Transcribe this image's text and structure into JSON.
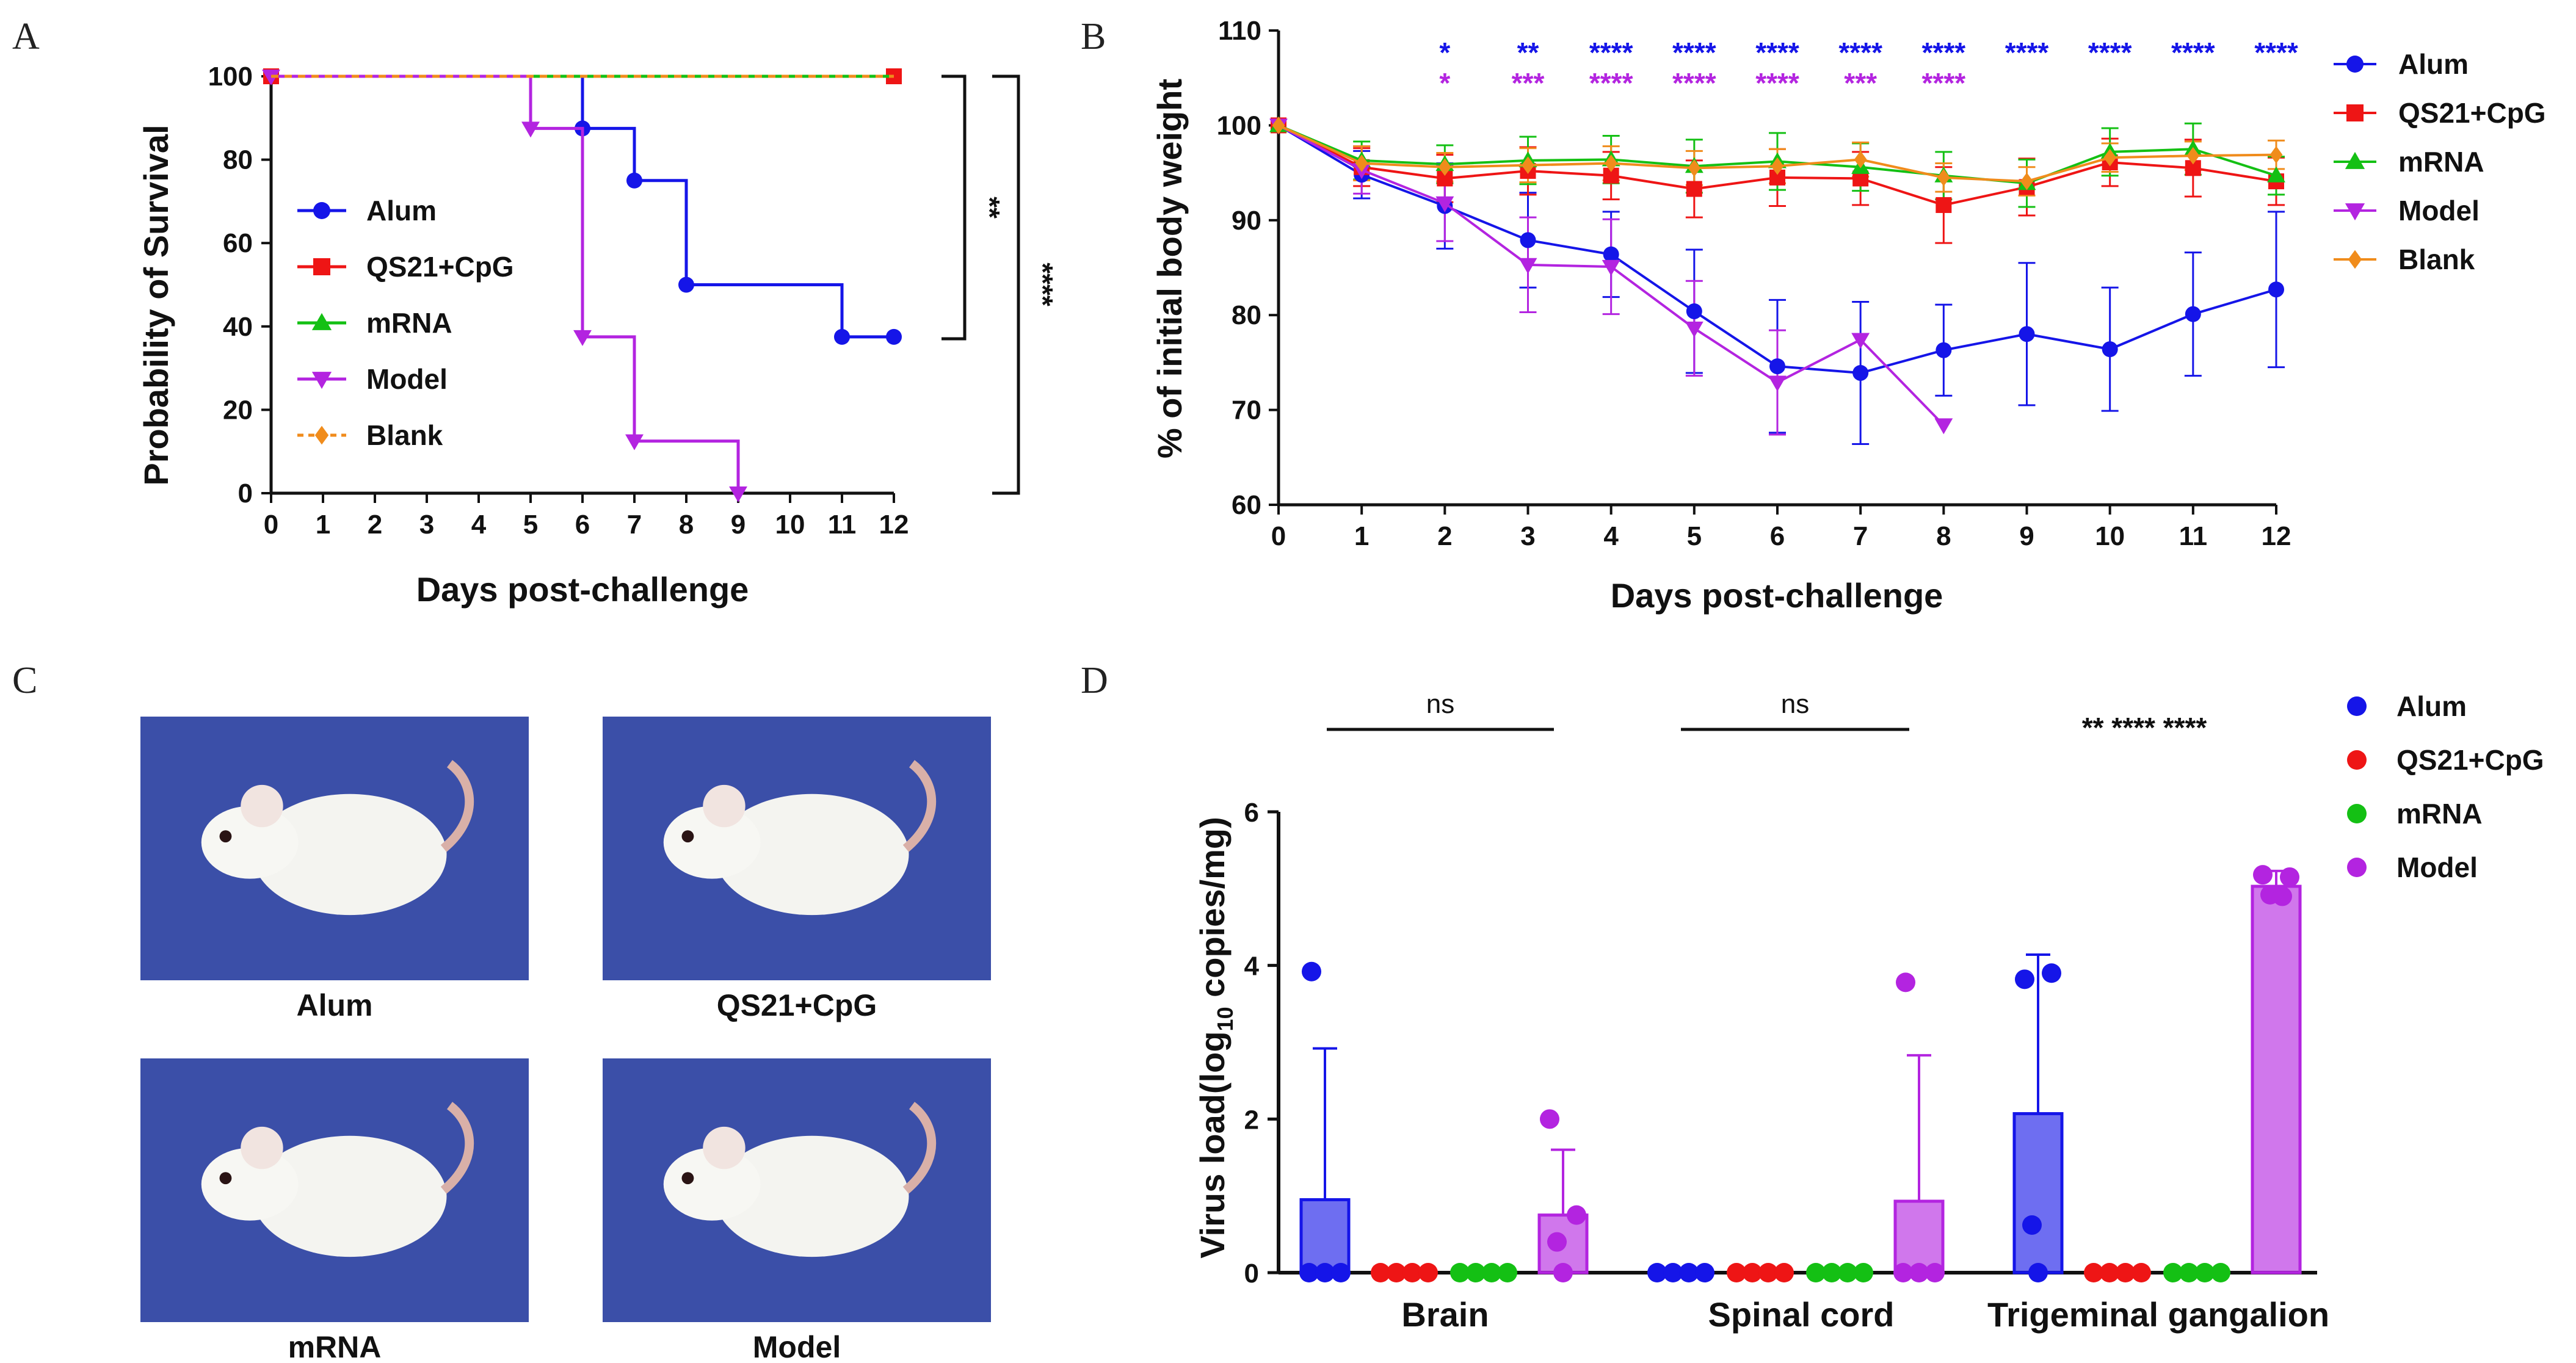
{
  "colors": {
    "alum": "#1515e8",
    "qs21": "#ee1515",
    "mrna": "#14c014",
    "model": "#b324e0",
    "blank": "#f08c1c",
    "photo_bg": "#3b4fa8"
  },
  "panels": {
    "A": {
      "letter": "A"
    },
    "B": {
      "letter": "B"
    },
    "C": {
      "letter": "C",
      "photo_labels": [
        "Alum",
        "QS21+CpG",
        "mRNA",
        "Model"
      ]
    },
    "D": {
      "letter": "D"
    }
  },
  "chart_data": [
    {
      "panel": "A",
      "type": "line",
      "style": "survival-step",
      "xlabel": "Days post-challenge",
      "ylabel": "Probability of Survival",
      "xlim": [
        0,
        12
      ],
      "ylim": [
        0,
        100
      ],
      "xticks": [
        0,
        1,
        2,
        3,
        4,
        5,
        6,
        7,
        8,
        9,
        10,
        11,
        12
      ],
      "yticks": [
        0,
        20,
        40,
        60,
        80,
        100
      ],
      "series": [
        {
          "name": "Alum",
          "key": "alum",
          "marker": "circle",
          "steps": [
            [
              0,
              100
            ],
            [
              6,
              87.5
            ],
            [
              7,
              75
            ],
            [
              8,
              50
            ],
            [
              11,
              37.5
            ],
            [
              12,
              37.5
            ]
          ],
          "points": [
            [
              0,
              100
            ],
            [
              6,
              87.5
            ],
            [
              7,
              75
            ],
            [
              8,
              50
            ],
            [
              11,
              37.5
            ],
            [
              12,
              37.5
            ]
          ]
        },
        {
          "name": "QS21+CpG",
          "key": "qs21",
          "marker": "square",
          "steps": [
            [
              0,
              100
            ],
            [
              12,
              100
            ]
          ],
          "points": [
            [
              0,
              100
            ],
            [
              12,
              100
            ]
          ]
        },
        {
          "name": "mRNA",
          "key": "mrna",
          "marker": "triangle-up",
          "steps": [
            [
              0,
              100
            ],
            [
              12,
              100
            ]
          ],
          "points": []
        },
        {
          "name": "Model",
          "key": "model",
          "marker": "triangle-down",
          "steps": [
            [
              0,
              100
            ],
            [
              5,
              87.5
            ],
            [
              6,
              37.5
            ],
            [
              7,
              12.5
            ],
            [
              9,
              0
            ]
          ],
          "points": [
            [
              0,
              100
            ],
            [
              5,
              87.5
            ],
            [
              6,
              37.5
            ],
            [
              7,
              12.5
            ],
            [
              9,
              0
            ]
          ]
        },
        {
          "name": "Blank",
          "key": "blank",
          "marker": "diamond",
          "dashed": true,
          "steps": [
            [
              0,
              100
            ],
            [
              12,
              100
            ]
          ],
          "points": []
        }
      ],
      "legend": [
        "Alum",
        "QS21+CpG",
        "mRNA",
        "Model",
        "Blank"
      ],
      "annotations": [
        {
          "label": "**"
        },
        {
          "label": "****"
        }
      ]
    },
    {
      "panel": "B",
      "type": "line",
      "xlabel": "Days post-challenge",
      "ylabel": "% of initial body weight",
      "xlim": [
        0,
        12
      ],
      "ylim": [
        60,
        110
      ],
      "xticks": [
        0,
        1,
        2,
        3,
        4,
        5,
        6,
        7,
        8,
        9,
        10,
        11,
        12
      ],
      "yticks": [
        60,
        70,
        80,
        90,
        100,
        110
      ],
      "series": [
        {
          "name": "Alum",
          "key": "alum",
          "marker": "circle",
          "x": [
            0,
            1,
            2,
            3,
            4,
            5,
            6,
            7,
            8,
            9,
            10,
            11,
            12
          ],
          "y": [
            100,
            94.8,
            91.5,
            87.9,
            86.4,
            80.4,
            74.6,
            73.9,
            76.3,
            78,
            76.4,
            80.1,
            82.7
          ],
          "err": [
            0,
            2.5,
            4.5,
            5,
            4.5,
            6.5,
            7,
            7.5,
            4.8,
            7.5,
            6.5,
            6.5,
            8.2
          ]
        },
        {
          "name": "QS21+CpG",
          "key": "qs21",
          "marker": "square",
          "x": [
            0,
            1,
            2,
            3,
            4,
            5,
            6,
            7,
            8,
            9,
            10,
            11,
            12
          ],
          "y": [
            100,
            95.6,
            94.4,
            95.2,
            94.7,
            93.3,
            94.5,
            94.4,
            91.6,
            93.5,
            96.1,
            95.5,
            94.1
          ],
          "err": [
            0,
            2,
            2.5,
            2.5,
            2.5,
            3,
            3,
            2.8,
            4,
            3,
            2.5,
            3,
            2.5
          ]
        },
        {
          "name": "mRNA",
          "key": "mrna",
          "marker": "triangle-up",
          "x": [
            0,
            1,
            2,
            3,
            4,
            5,
            6,
            7,
            8,
            9,
            10,
            11,
            12
          ],
          "y": [
            100,
            96.3,
            95.9,
            96.3,
            96.4,
            95.7,
            96.2,
            95.6,
            94.7,
            93.9,
            97.2,
            97.5,
            94.7
          ],
          "err": [
            0,
            2,
            2,
            2.5,
            2.5,
            2.8,
            3,
            2.5,
            2.5,
            2.5,
            2.5,
            2.7,
            2
          ]
        },
        {
          "name": "Model",
          "key": "model",
          "marker": "triangle-down",
          "x": [
            0,
            1,
            2,
            3,
            4,
            5,
            6,
            7,
            8
          ],
          "y": [
            100,
            95.3,
            91.8,
            85.3,
            85.1,
            78.6,
            72.9,
            77.4,
            68.4
          ],
          "err": [
            0,
            2.5,
            4,
            5,
            5,
            5,
            5.5,
            0,
            0
          ]
        },
        {
          "name": "Blank",
          "key": "blank",
          "marker": "diamond",
          "x": [
            0,
            1,
            2,
            3,
            4,
            5,
            6,
            7,
            8,
            9,
            10,
            11,
            12
          ],
          "y": [
            100,
            96,
            95.6,
            95.8,
            96,
            95.5,
            95.7,
            96.4,
            94.5,
            94.1,
            96.6,
            96.8,
            96.9
          ],
          "err": [
            0,
            1.8,
            1.5,
            1.8,
            1.8,
            1.8,
            1.8,
            1.8,
            1.5,
            1.5,
            1.5,
            1.5,
            1.5
          ]
        }
      ],
      "legend": [
        "Alum",
        "QS21+CpG",
        "mRNA",
        "Model",
        "Blank"
      ],
      "significance": {
        "alum": [
          {
            "x": 2,
            "label": "*"
          },
          {
            "x": 3,
            "label": "**"
          },
          {
            "x": 4,
            "label": "****"
          },
          {
            "x": 5,
            "label": "****"
          },
          {
            "x": 6,
            "label": "****"
          },
          {
            "x": 7,
            "label": "****"
          },
          {
            "x": 8,
            "label": "****"
          },
          {
            "x": 9,
            "label": "****"
          },
          {
            "x": 10,
            "label": "****"
          },
          {
            "x": 11,
            "label": "****"
          },
          {
            "x": 12,
            "label": "****"
          }
        ],
        "model": [
          {
            "x": 2,
            "label": "*"
          },
          {
            "x": 3,
            "label": "***"
          },
          {
            "x": 4,
            "label": "****"
          },
          {
            "x": 5,
            "label": "****"
          },
          {
            "x": 6,
            "label": "****"
          },
          {
            "x": 7,
            "label": "***"
          },
          {
            "x": 8,
            "label": "****"
          }
        ]
      }
    },
    {
      "panel": "D",
      "type": "bar",
      "xlabel": "",
      "ylabel": "Virus load(log",
      "ylabel_sub": "10",
      "ylabel_tail": " copies/mg)",
      "ylim": [
        0,
        6
      ],
      "yticks": [
        0,
        2,
        4,
        6
      ],
      "categories": [
        "Brain",
        "Spinal cord",
        "Trigeminal gangalion"
      ],
      "series": [
        {
          "name": "Alum",
          "key": "alum",
          "values": [
            0.95,
            0,
            2.07
          ],
          "sd": [
            1.97,
            0,
            2.07
          ],
          "points": [
            [
              3.92,
              0,
              0,
              0
            ],
            [
              0,
              0,
              0,
              0
            ],
            [
              3.82,
              3.9,
              0.62,
              0
            ]
          ]
        },
        {
          "name": "QS21+CpG",
          "key": "qs21",
          "values": [
            0,
            0,
            0
          ],
          "sd": [
            0,
            0,
            0
          ],
          "points": [
            [
              0,
              0,
              0,
              0
            ],
            [
              0,
              0,
              0,
              0
            ],
            [
              0,
              0,
              0,
              0
            ]
          ]
        },
        {
          "name": "mRNA",
          "key": "mrna",
          "values": [
            0,
            0,
            0
          ],
          "sd": [
            0,
            0,
            0
          ],
          "points": [
            [
              0,
              0,
              0,
              0
            ],
            [
              0,
              0,
              0,
              0
            ],
            [
              0,
              0,
              0,
              0
            ]
          ]
        },
        {
          "name": "Model",
          "key": "model",
          "values": [
            0.75,
            0.93,
            5.03
          ],
          "sd": [
            0.85,
            1.9,
            0.2
          ],
          "points": [
            [
              2.0,
              0.75,
              0.4,
              0
            ],
            [
              3.78,
              0,
              0,
              0
            ],
            [
              5.18,
              5.15,
              4.92,
              4.9
            ]
          ]
        }
      ],
      "legend": [
        "Alum",
        "QS21+CpG",
        "mRNA",
        "Model"
      ],
      "comparisons": [
        {
          "category": "Brain",
          "label": "ns"
        },
        {
          "category": "Spinal cord",
          "label": "ns"
        },
        {
          "category": "Trigeminal gangalion",
          "label": "** **** ****"
        }
      ]
    }
  ]
}
